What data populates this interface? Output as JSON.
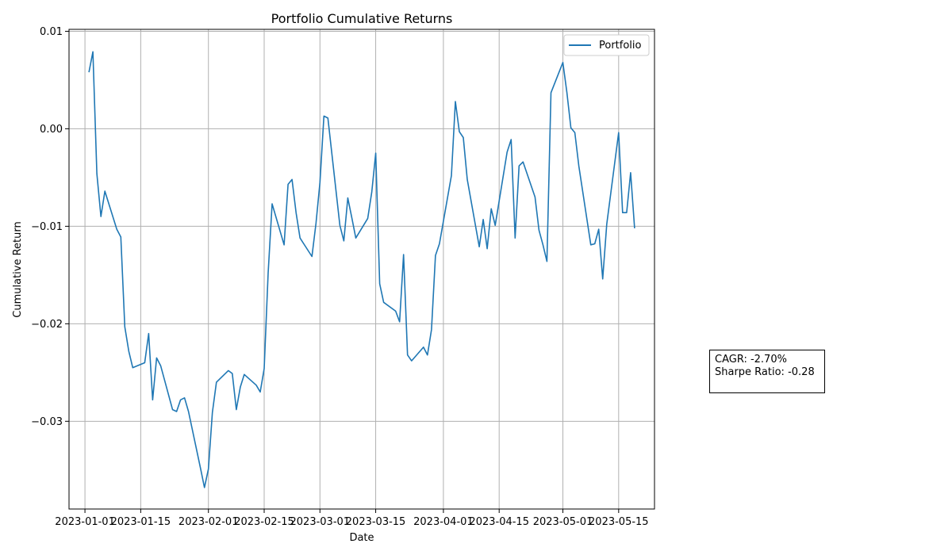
{
  "chart_data": {
    "type": "line",
    "title": "Portfolio Cumulative Returns",
    "xlabel": "Date",
    "ylabel": "Cumulative Return",
    "x_axis_type": "date",
    "xlim": [
      "2023-12-28",
      "2023-05-24"
    ],
    "ylim": [
      -0.039,
      0.0102
    ],
    "x_ticks": [
      "2023-01-01",
      "2023-01-15",
      "2023-02-01",
      "2023-02-15",
      "2023-03-01",
      "2023-03-15",
      "2023-04-01",
      "2023-04-15",
      "2023-05-01",
      "2023-05-15"
    ],
    "y_ticks": [
      0.01,
      0.0,
      -0.01,
      -0.02,
      -0.03
    ],
    "y_tick_labels": [
      "0.01",
      "0.00",
      "−0.01",
      "−0.02",
      "−0.03"
    ],
    "grid": true,
    "legend": "top-right",
    "series": [
      {
        "name": "Portfolio",
        "color": "#1f77b4",
        "x": [
          "2023-01-02",
          "2023-01-03",
          "2023-01-04",
          "2023-01-05",
          "2023-01-06",
          "2023-01-09",
          "2023-01-10",
          "2023-01-11",
          "2023-01-12",
          "2023-01-13",
          "2023-01-16",
          "2023-01-17",
          "2023-01-18",
          "2023-01-19",
          "2023-01-20",
          "2023-01-23",
          "2023-01-24",
          "2023-01-25",
          "2023-01-26",
          "2023-01-27",
          "2023-01-30",
          "2023-01-31",
          "2023-02-01",
          "2023-02-02",
          "2023-02-03",
          "2023-02-06",
          "2023-02-07",
          "2023-02-08",
          "2023-02-09",
          "2023-02-10",
          "2023-02-13",
          "2023-02-14",
          "2023-02-15",
          "2023-02-16",
          "2023-02-17",
          "2023-02-20",
          "2023-02-21",
          "2023-02-22",
          "2023-02-23",
          "2023-02-24",
          "2023-02-27",
          "2023-02-28",
          "2023-03-01",
          "2023-03-02",
          "2023-03-03",
          "2023-03-06",
          "2023-03-07",
          "2023-03-08",
          "2023-03-09",
          "2023-03-10",
          "2023-03-13",
          "2023-03-14",
          "2023-03-15",
          "2023-03-16",
          "2023-03-17",
          "2023-03-20",
          "2023-03-21",
          "2023-03-22",
          "2023-03-23",
          "2023-03-24",
          "2023-03-27",
          "2023-03-28",
          "2023-03-29",
          "2023-03-30",
          "2023-03-31",
          "2023-04-03",
          "2023-04-04",
          "2023-04-05",
          "2023-04-06",
          "2023-04-07",
          "2023-04-10",
          "2023-04-11",
          "2023-04-12",
          "2023-04-13",
          "2023-04-14",
          "2023-04-17",
          "2023-04-18",
          "2023-04-19",
          "2023-04-20",
          "2023-04-21",
          "2023-04-24",
          "2023-04-25",
          "2023-04-26",
          "2023-04-27",
          "2023-04-28",
          "2023-05-01",
          "2023-05-02",
          "2023-05-03",
          "2023-05-04",
          "2023-05-05",
          "2023-05-08",
          "2023-05-09",
          "2023-05-10",
          "2023-05-11",
          "2023-05-12",
          "2023-05-15",
          "2023-05-16",
          "2023-05-17",
          "2023-05-18",
          "2023-05-19"
        ],
        "values": [
          0.0058,
          0.0079,
          -0.0046,
          -0.009,
          -0.0064,
          -0.0103,
          -0.0111,
          -0.0203,
          -0.0228,
          -0.0245,
          -0.024,
          -0.021,
          -0.0278,
          -0.0235,
          -0.0243,
          -0.0288,
          -0.029,
          -0.0278,
          -0.0276,
          -0.029,
          -0.0348,
          -0.0368,
          -0.0349,
          -0.0291,
          -0.026,
          -0.0248,
          -0.0251,
          -0.0288,
          -0.0265,
          -0.0252,
          -0.0263,
          -0.027,
          -0.0246,
          -0.0148,
          -0.0077,
          -0.0119,
          -0.0057,
          -0.0052,
          -0.0086,
          -0.0112,
          -0.0131,
          -0.0097,
          -0.0055,
          0.0013,
          0.0011,
          -0.0099,
          -0.0115,
          -0.0071,
          -0.0091,
          -0.0112,
          -0.0092,
          -0.0065,
          -0.0025,
          -0.0159,
          -0.0178,
          -0.0187,
          -0.0198,
          -0.0129,
          -0.0232,
          -0.0238,
          -0.0224,
          -0.0232,
          -0.0206,
          -0.013,
          -0.0118,
          -0.0048,
          0.0028,
          -0.0003,
          -0.0009,
          -0.0052,
          -0.0121,
          -0.0093,
          -0.0123,
          -0.0082,
          -0.0099,
          -0.0024,
          -0.0011,
          -0.0112,
          -0.0038,
          -0.0034,
          -0.007,
          -0.0104,
          -0.0119,
          -0.0136,
          0.0037,
          0.0068,
          0.0037,
          0.0001,
          -0.0004,
          -0.0038,
          -0.0119,
          -0.0118,
          -0.0103,
          -0.0154,
          -0.0098,
          -0.0004,
          -0.0086,
          -0.0086,
          -0.0045,
          -0.0102
        ]
      }
    ]
  },
  "stats_box": {
    "cagr_label": "CAGR: -2.70%",
    "sharpe_label": "Sharpe Ratio: -0.28"
  }
}
